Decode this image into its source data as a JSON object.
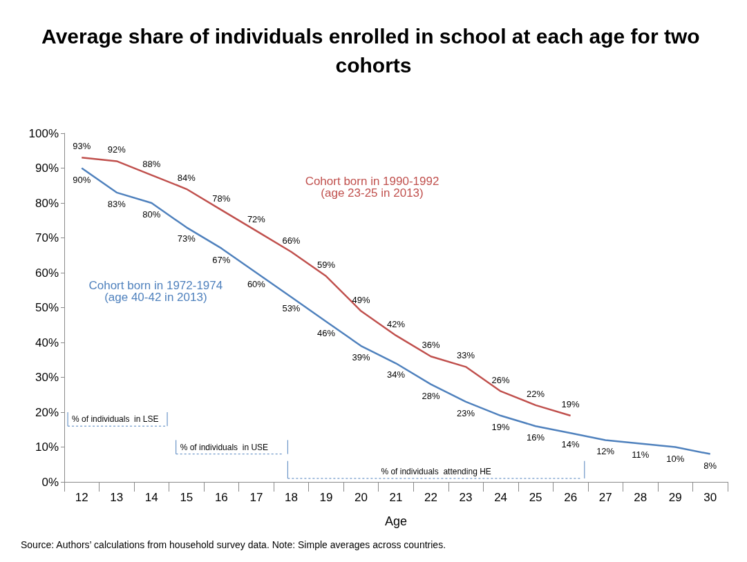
{
  "chart_data": {
    "type": "line",
    "title": "Average share of individuals enrolled in school at each age for two cohorts",
    "xlabel": "Age",
    "categories": [
      "12",
      "13",
      "14",
      "15",
      "16",
      "17",
      "18",
      "19",
      "20",
      "21",
      "22",
      "23",
      "24",
      "25",
      "26",
      "27",
      "28",
      "29",
      "30"
    ],
    "series": [
      {
        "name": "Cohort born in 1990-1992\n(age 23-25 in 2013)",
        "color": "#c0504d",
        "values": [
          93,
          92,
          88,
          84,
          78,
          72,
          66,
          59,
          49,
          42,
          36,
          33,
          26,
          22,
          19,
          null,
          null,
          null,
          null
        ],
        "value_labels": [
          "93%",
          "92%",
          "88%",
          "84%",
          "78%",
          "72%",
          "66%",
          "59%",
          "49%",
          "42%",
          "36%",
          "33%",
          "26%",
          "22%",
          "19%",
          null,
          null,
          null,
          null
        ]
      },
      {
        "name": "Cohort born in 1972-1974\n(age 40-42 in 2013)",
        "color": "#4f81bd",
        "values": [
          90,
          83,
          80,
          73,
          67,
          60,
          53,
          46,
          39,
          34,
          28,
          23,
          19,
          16,
          14,
          12,
          11,
          10,
          8
        ],
        "value_labels": [
          "90%",
          "83%",
          "80%",
          "73%",
          "67%",
          "60%",
          "53%",
          "46%",
          "39%",
          "34%",
          "28%",
          "23%",
          "19%",
          "16%",
          "14%",
          "12%",
          "11%",
          "10%",
          "8%"
        ]
      }
    ],
    "ylim": [
      0,
      100
    ],
    "yticks": [
      {
        "value": 0,
        "label": "0%"
      },
      {
        "value": 10,
        "label": "10%"
      },
      {
        "value": 20,
        "label": "20%"
      },
      {
        "value": 30,
        "label": "30%"
      },
      {
        "value": 40,
        "label": "40%"
      },
      {
        "value": 50,
        "label": "50%"
      },
      {
        "value": 60,
        "label": "60%"
      },
      {
        "value": 70,
        "label": "70%"
      },
      {
        "value": 80,
        "label": "80%"
      },
      {
        "value": 90,
        "label": "90%"
      },
      {
        "value": 100,
        "label": "100%"
      }
    ],
    "grid": false,
    "legend": false,
    "marker": "none",
    "line_style": "solid",
    "annotations": [
      "% of individuals  in LSE",
      "% of individuals  in USE",
      "% of individuals  attending HE",
      "Source: Authors’ calculations from household survey data. Note: Simple averages across countries."
    ]
  }
}
